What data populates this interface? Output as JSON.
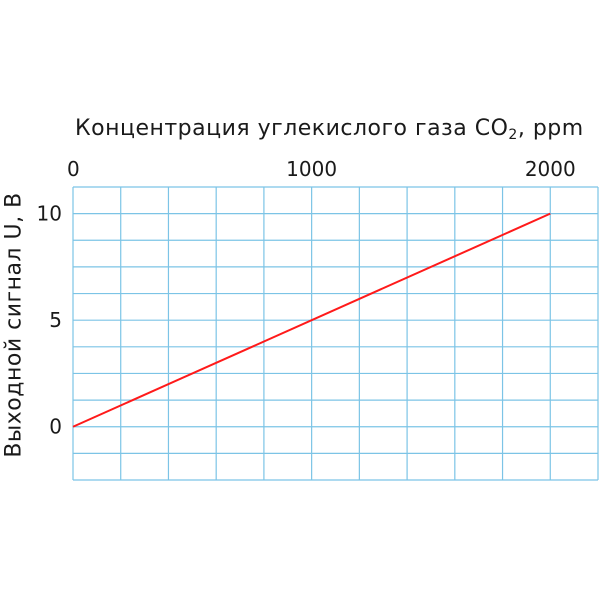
{
  "chart_data": {
    "type": "line",
    "title": "Концентрация углекислого газа CO",
    "title_subscript": "2",
    "title_suffix": ", ppm",
    "xlabel": "Концентрация углекислого газа CO2, ppm",
    "ylabel": "Выходной сигнал U, В",
    "xlim": [
      0,
      2200
    ],
    "ylim": [
      -2.5,
      11.25
    ],
    "x_grid_step": 200,
    "y_grid_step": 1.25,
    "x_ticks": [
      0,
      1000,
      2000
    ],
    "x_tick_labels": [
      "0",
      "1000",
      "2000"
    ],
    "y_ticks": [
      0,
      5,
      10
    ],
    "y_tick_labels": [
      "0",
      "5",
      "10"
    ],
    "grid": true,
    "x_axis_position": "top",
    "series": [
      {
        "x": [
          0,
          2000
        ],
        "y": [
          0,
          10
        ],
        "color": "#ff1a1a"
      }
    ],
    "grid_color": "#7cc4e6"
  }
}
